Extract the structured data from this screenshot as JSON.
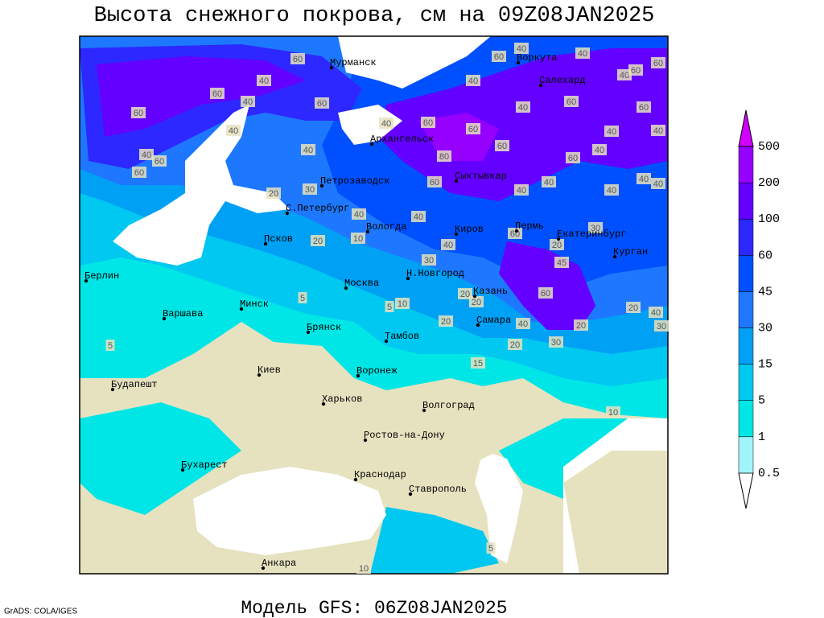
{
  "title": "Высота снежного покрова, см на 09Z08JAN2025",
  "subtitle": "Модель GFS: 06Z08JAN2025",
  "credit": "GrADS: COLA/IGES",
  "cities": [
    "Мурманск",
    "Воркута",
    "Салехард",
    "Архангельск",
    "Петрозаводск",
    "Сыктывкар",
    "С.Петербург",
    "Вологда",
    "Киров",
    "Пермь",
    "Екатеринбург",
    "Курган",
    "Псков",
    "Н.Новгород",
    "Москва",
    "Казань",
    "Берлин",
    "Минск",
    "Варшава",
    "Самара",
    "Брянск",
    "Тамбов",
    "Киев",
    "Воронеж",
    "Будапешт",
    "Харьков",
    "Волгоград",
    "Ростов-на-Дону",
    "Бухарест",
    "Краснодар",
    "Ставрополь",
    "Анкара"
  ],
  "colorbar": {
    "levels": [
      0.5,
      1,
      5,
      15,
      30,
      45,
      60,
      100,
      200,
      500
    ],
    "colors": [
      "#ffffff",
      "#a0f5fa",
      "#00e6e6",
      "#00c8f0",
      "#00a0f5",
      "#1e78ff",
      "#0050ff",
      "#2d28ff",
      "#6400ff",
      "#9600ff",
      "#d200ff"
    ]
  },
  "contour_labels": [
    60,
    40,
    60,
    40,
    60,
    40,
    60,
    60,
    40,
    40,
    60,
    40,
    60,
    80,
    60,
    60,
    40,
    60,
    40,
    40,
    60,
    40,
    60,
    60,
    40,
    40,
    40,
    60,
    60,
    40,
    40,
    40,
    40,
    60,
    40,
    40,
    20,
    30,
    40,
    40,
    20,
    10,
    40,
    60,
    20,
    30,
    45,
    30,
    60,
    20,
    20,
    5,
    5,
    10,
    20,
    40,
    20,
    20,
    40,
    30,
    5,
    20,
    30,
    15,
    10,
    5,
    10
  ]
}
